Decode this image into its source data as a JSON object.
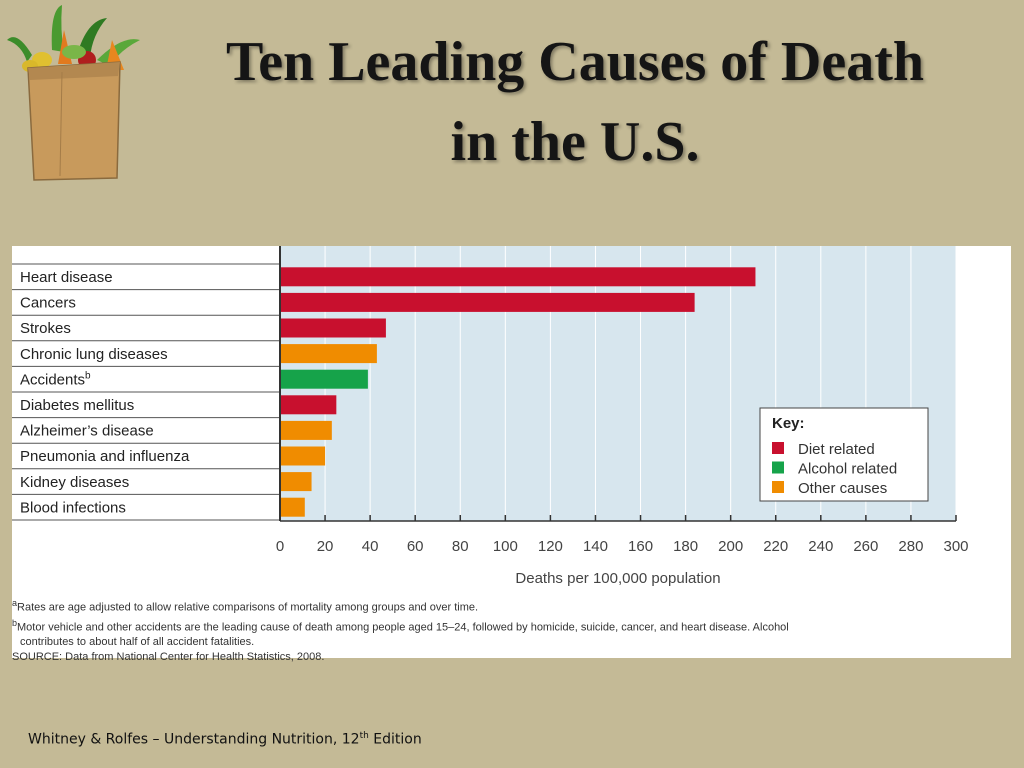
{
  "title": {
    "line1": "Ten Leading Causes of Death",
    "line2": "in the U.S."
  },
  "colors": {
    "diet": "#c8102e",
    "alcohol": "#16a34a",
    "other": "#f08c00",
    "plot_bg": "#d7e6ee"
  },
  "chart_data": {
    "type": "bar",
    "orientation": "horizontal",
    "categories": [
      "Heart disease",
      "Cancers",
      "Strokes",
      "Chronic lung diseases",
      "Accidents",
      "Diabetes mellitus",
      "Alzheimer’s disease",
      "Pneumonia and influenza",
      "Kidney diseases",
      "Blood infections"
    ],
    "category_superscripts": [
      "",
      "",
      "",
      "",
      "b",
      "",
      "",
      "",
      "",
      ""
    ],
    "values": [
      211,
      184,
      47,
      43,
      39,
      25,
      23,
      20,
      14,
      11
    ],
    "groups": [
      "diet",
      "diet",
      "diet",
      "other",
      "alcohol",
      "diet",
      "other",
      "other",
      "other",
      "other"
    ],
    "xlabel": "Deaths per 100,000 population",
    "xlim": [
      0,
      300
    ],
    "xticks": [
      0,
      20,
      40,
      60,
      80,
      100,
      120,
      140,
      160,
      180,
      200,
      220,
      240,
      260,
      280,
      300
    ],
    "grid": true,
    "legend": {
      "title": "Key:",
      "placement": "lower-right",
      "items": [
        {
          "key": "diet",
          "label": "Diet related"
        },
        {
          "key": "alcohol",
          "label": "Alcohol related"
        },
        {
          "key": "other",
          "label": "Other causes"
        }
      ]
    }
  },
  "footnotes": {
    "a_mark": "a",
    "a": "Rates are age adjusted to allow relative comparisons of mortality among groups and over time.",
    "b_mark": "b",
    "b1": "Motor vehicle and other accidents are the leading cause of death among people aged 15–24, followed by homicide, suicide, cancer, and heart disease. Alcohol",
    "b2": "contributes to about half of all accident fatalities.",
    "source": "SOURCE: Data from National Center for Health Statistics, 2008."
  },
  "footer": {
    "text": "Whitney  & Rolfes – Understanding Nutrition, 12",
    "sup": "th",
    "edition": " Edition"
  }
}
